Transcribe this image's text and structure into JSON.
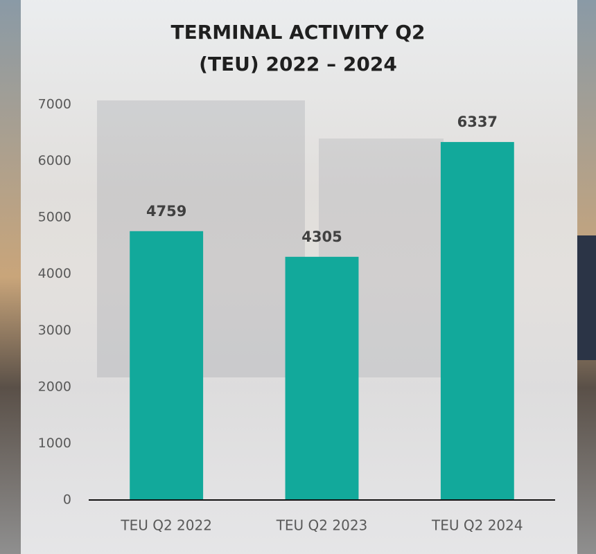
{
  "chart_data": {
    "type": "bar",
    "title": [
      "TERMINAL ACTIVITY Q2",
      "(TEU) 2022 – 2024"
    ],
    "categories": [
      "TEU Q2 2022",
      "TEU Q2 2023",
      "TEU Q2 2024"
    ],
    "values": [
      4759,
      4305,
      6337
    ],
    "color": "#12a99b",
    "ylim": [
      0,
      7000
    ],
    "yticks": [
      0,
      1000,
      2000,
      3000,
      4000,
      5000,
      6000,
      7000
    ],
    "grid": false
  }
}
